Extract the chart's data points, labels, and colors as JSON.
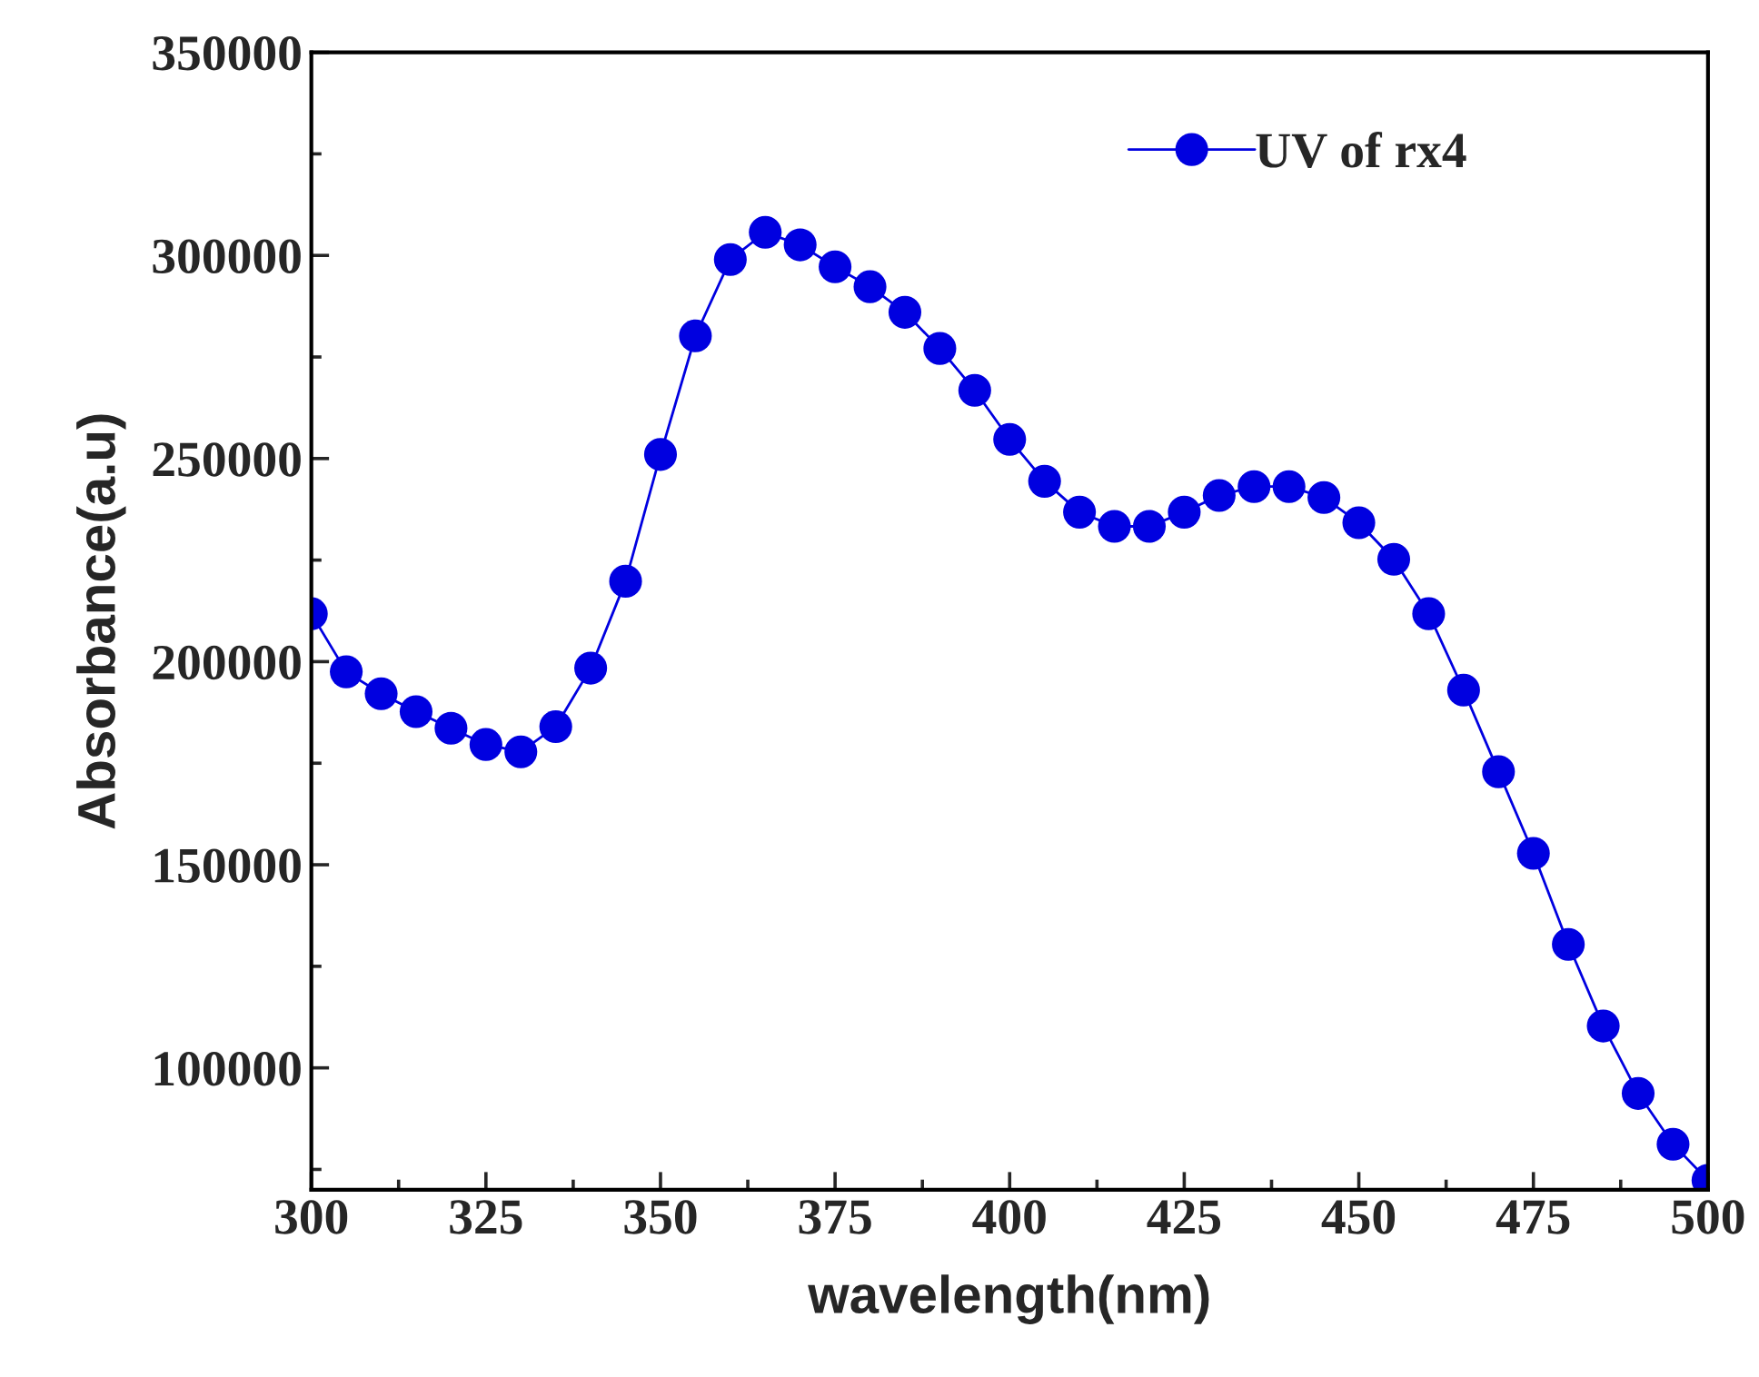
{
  "chart_data": {
    "type": "line",
    "xlabel": "wavelength(nm)",
    "ylabel": "Absorbance(a.u)",
    "x": [
      300,
      305,
      310,
      315,
      320,
      325,
      330,
      335,
      340,
      345,
      350,
      355,
      360,
      365,
      370,
      375,
      380,
      385,
      390,
      395,
      400,
      405,
      410,
      415,
      420,
      425,
      430,
      435,
      440,
      445,
      450,
      455,
      460,
      465,
      470,
      475,
      480,
      485,
      490,
      495,
      500
    ],
    "series": [
      {
        "name": "UV of rx4",
        "color": "#0000e0",
        "values": [
          211800,
          197500,
          192100,
          187700,
          183600,
          179600,
          177800,
          184000,
          198400,
          219800,
          251000,
          280200,
          299000,
          305700,
          302600,
          297200,
          292300,
          286000,
          277100,
          266800,
          254700,
          244400,
          236800,
          233300,
          233300,
          236800,
          240900,
          243100,
          243100,
          240400,
          234200,
          225200,
          211800,
          193000,
          172900,
          152800,
          130400,
          110300,
          93700,
          81200,
          72300
        ]
      }
    ],
    "xlim": [
      300,
      500
    ],
    "xticks": [
      300,
      325,
      350,
      375,
      400,
      425,
      450,
      475,
      500
    ],
    "ylim": [
      70000,
      350000
    ],
    "yticks": [
      100000,
      150000,
      200000,
      250000,
      300000,
      350000
    ],
    "marker": "circle",
    "line_style": "solid",
    "legend": "top right",
    "grid": false
  }
}
